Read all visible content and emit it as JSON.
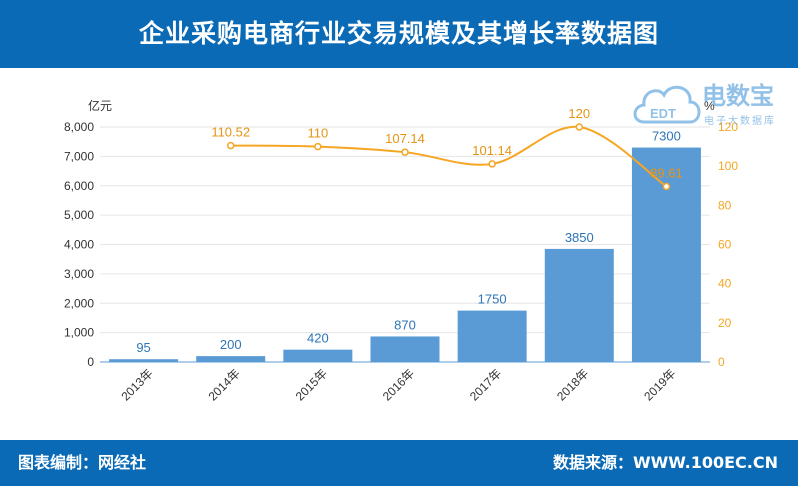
{
  "header": {
    "title": "企业采购电商行业交易规模及其增长率数据图"
  },
  "footer": {
    "left": "图表编制：网经社",
    "right": "数据来源：WWW.100EC.CN"
  },
  "watermark": {
    "main": "电数宝",
    "sub": "电子大数据库",
    "badge": "EDT"
  },
  "chart_data": {
    "type": "bar",
    "categories": [
      "2013年",
      "2014年",
      "2015年",
      "2016年",
      "2017年",
      "2018年",
      "2019年"
    ],
    "ylabel": "亿元",
    "y2label": "%",
    "ylim": [
      0,
      8000
    ],
    "y2lim": [
      0,
      120
    ],
    "yticks": [
      0,
      1000,
      2000,
      3000,
      4000,
      5000,
      6000,
      7000,
      8000
    ],
    "y2ticks": [
      0,
      20,
      40,
      60,
      80,
      100,
      120
    ],
    "series": [
      {
        "type": "bar",
        "axis": "left",
        "color": "#5b9bd5",
        "values": [
          95,
          200,
          420,
          870,
          1750,
          3850,
          7300
        ],
        "labels": [
          "95",
          "200",
          "420",
          "870",
          "1750",
          "3850",
          "7300"
        ]
      },
      {
        "type": "line",
        "axis": "right",
        "color": "#f5a623",
        "values": [
          null,
          110.52,
          110,
          107.14,
          101.14,
          120,
          89.61
        ],
        "labels": [
          "",
          "110.52",
          "110",
          "107.14",
          "101.14",
          "120",
          "89.61"
        ]
      }
    ]
  }
}
